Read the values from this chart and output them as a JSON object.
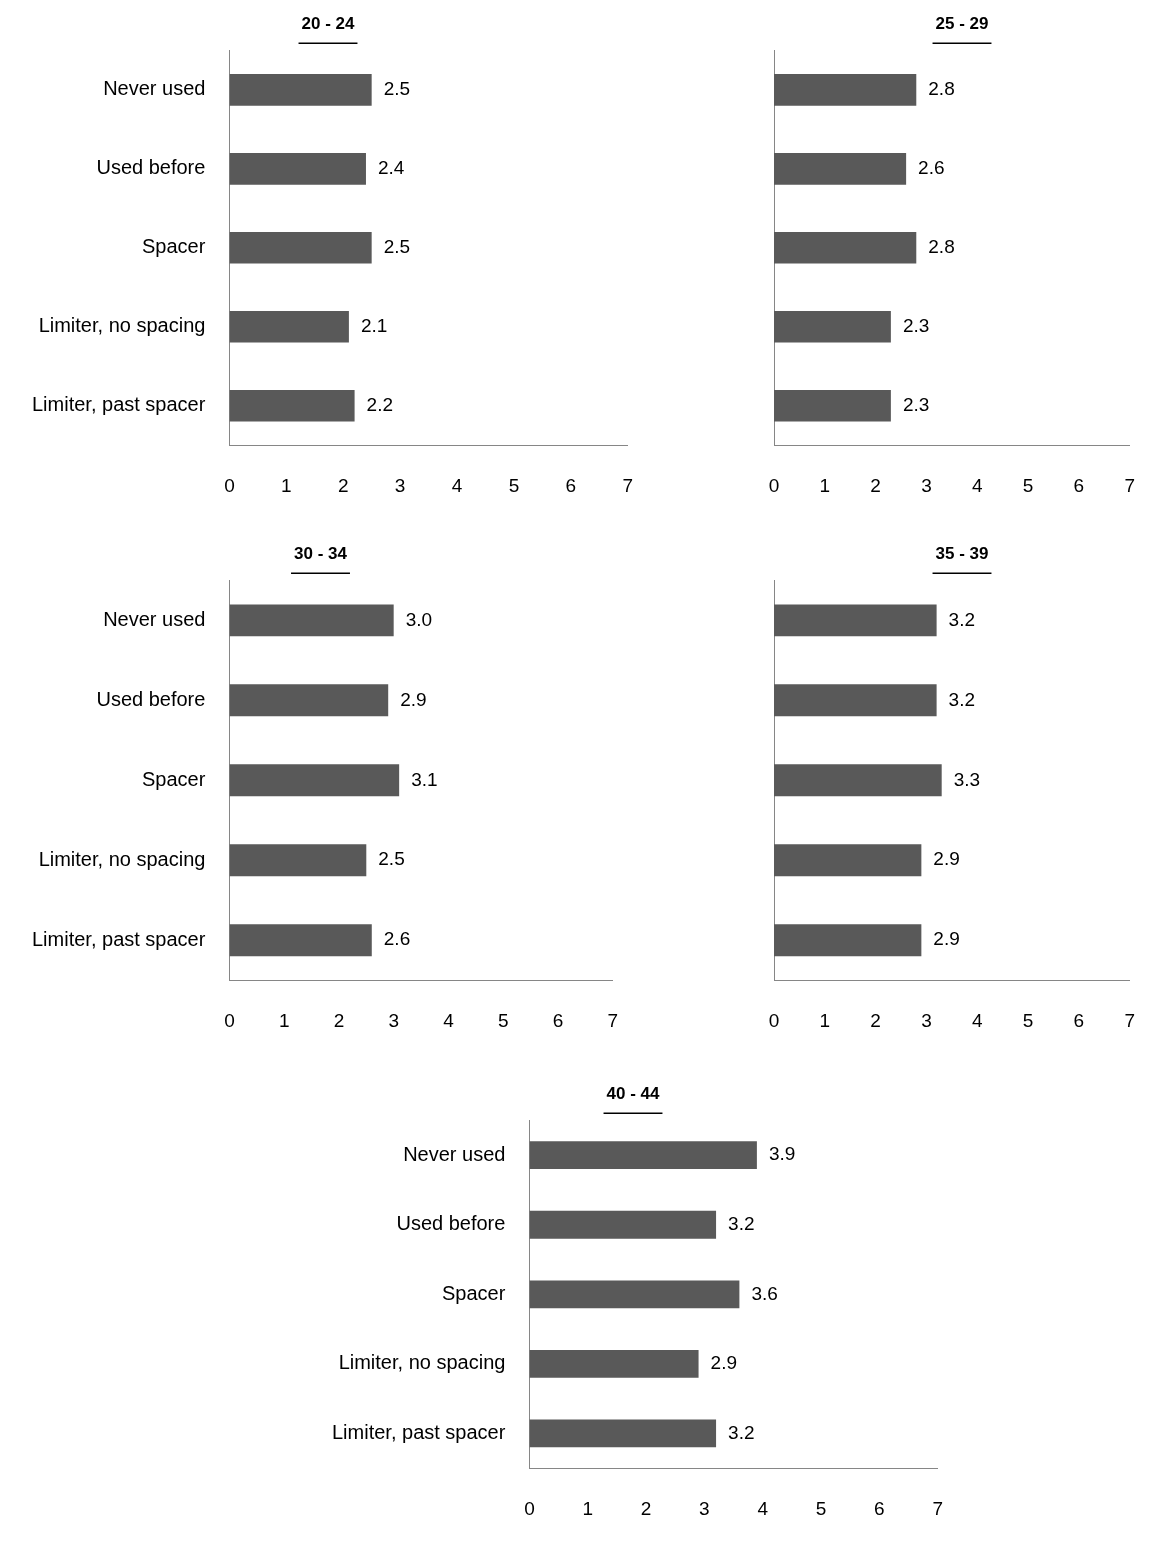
{
  "chart_data": [
    {
      "type": "bar",
      "orientation": "horizontal",
      "title": "20 - 24",
      "categories": [
        "Never used",
        "Used before",
        "Spacer",
        "Limiter, no spacing",
        "Limiter, past spacer"
      ],
      "values": [
        2.5,
        2.4,
        2.5,
        2.1,
        2.2
      ],
      "value_labels": [
        "2.5",
        "2.4",
        "2.5",
        "2.1",
        "2.2"
      ],
      "color": "#595959",
      "xlim": [
        0,
        7
      ],
      "xticks": [
        0,
        1,
        2,
        3,
        4,
        5,
        6,
        7
      ]
    },
    {
      "type": "bar",
      "orientation": "horizontal",
      "title": "25 - 29",
      "categories": [
        null,
        null,
        null,
        null,
        null
      ],
      "values": [
        2.8,
        2.6,
        2.8,
        2.3,
        2.3
      ],
      "value_labels": [
        "2.8",
        "2.6",
        "2.8",
        "2.3",
        "2.3"
      ],
      "color": "#595959",
      "xlim": [
        0,
        7
      ],
      "xticks": [
        0,
        1,
        2,
        3,
        4,
        5,
        6,
        7
      ],
      "tick_labels": "x"
    },
    {
      "type": "bar",
      "orientation": "horizontal",
      "title": "30 - 34",
      "categories": [
        "Never used",
        "Used before",
        "Spacer",
        "Limiter, no spacing",
        "Limiter, past spacer"
      ],
      "values": [
        3.0,
        2.9,
        3.1,
        2.5,
        2.6
      ],
      "value_labels": [
        "3.0",
        "2.9",
        "3.1",
        "2.5",
        "2.6"
      ],
      "color": "#595959",
      "xlim": [
        0,
        7
      ],
      "xticks": [
        0,
        1,
        2,
        3,
        4,
        5,
        6,
        7
      ]
    },
    {
      "type": "bar",
      "orientation": "horizontal",
      "title": "35 - 39",
      "categories": [
        null,
        null,
        null,
        null,
        null
      ],
      "values": [
        3.2,
        3.2,
        3.3,
        2.9,
        2.9
      ],
      "value_labels": [
        "3.2",
        "3.2",
        "3.3",
        "2.9",
        "2.9"
      ],
      "color": "#595959",
      "xlim": [
        0,
        7
      ],
      "xticks": [
        0,
        1,
        2,
        3,
        4,
        5,
        6,
        7
      ],
      "tick_labels": "x"
    },
    {
      "type": "bar",
      "orientation": "horizontal",
      "title": "40 - 44",
      "categories": [
        "Never used",
        "Used before",
        "Spacer",
        "Limiter, no spacing",
        "Limiter, past spacer"
      ],
      "values": [
        3.9,
        3.2,
        3.6,
        2.9,
        3.2
      ],
      "value_labels": [
        "3.9",
        "3.2",
        "3.6",
        "2.9",
        "3.2"
      ],
      "color": "#595959",
      "xlim": [
        0,
        7
      ],
      "xticks": [
        0,
        1,
        2,
        3,
        4,
        5,
        6,
        7
      ]
    }
  ]
}
